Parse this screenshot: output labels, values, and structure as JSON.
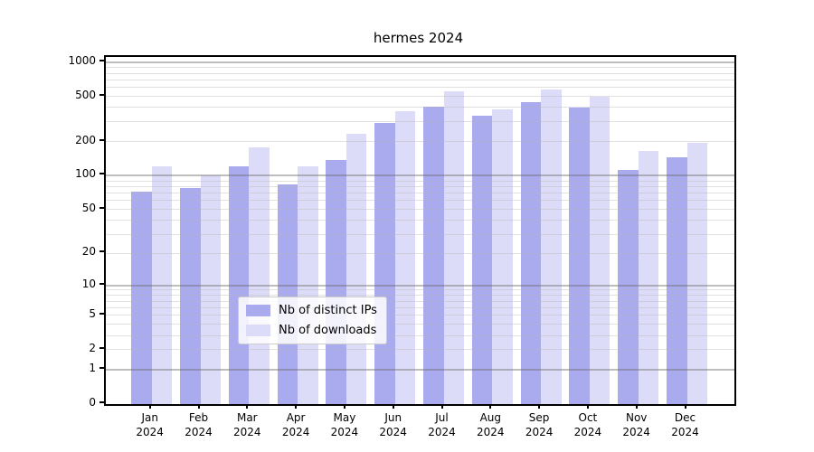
{
  "chart_data": {
    "type": "bar",
    "title": "hermes 2024",
    "categories": [
      "Jan 2024",
      "Feb 2024",
      "Mar 2024",
      "Apr 2024",
      "May 2024",
      "Jun 2024",
      "Jul 2024",
      "Aug 2024",
      "Sep 2024",
      "Oct 2024",
      "Nov 2024",
      "Dec 2024"
    ],
    "series": [
      {
        "name": "Nb of distinct IPs",
        "color": "#aaaaee",
        "values": [
          72,
          78,
          120,
          83,
          138,
          295,
          408,
          337,
          445,
          396,
          113,
          146
        ]
      },
      {
        "name": "Nb of downloads",
        "color": "#dcdcf8",
        "values": [
          120,
          101,
          178,
          122,
          234,
          372,
          555,
          388,
          578,
          500,
          165,
          195
        ]
      }
    ],
    "y_ticks": [
      0,
      1,
      2,
      5,
      10,
      20,
      50,
      100,
      200,
      500,
      1000
    ],
    "y_scale": "log1p",
    "y_axis_max": 1112,
    "grid": "on",
    "legend_position": "lower center",
    "colors": {
      "major_gridline": "#b4b4b4",
      "minor_gridline": "#e6e6e6",
      "axis": "#000000"
    }
  }
}
